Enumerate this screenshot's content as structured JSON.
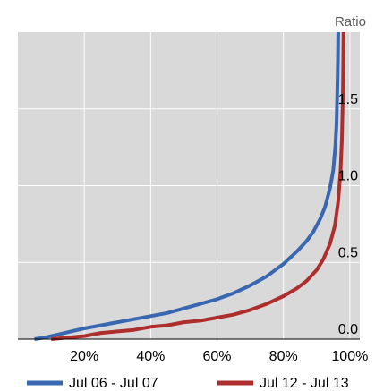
{
  "chart_data": {
    "type": "line",
    "title": "",
    "xlabel": "",
    "ylabel": "Ratio",
    "xlim": [
      0,
      103
    ],
    "ylim": [
      0,
      2.0
    ],
    "grid": true,
    "legend_position": "bottom",
    "x_ticks": [
      20,
      40,
      60,
      80,
      100
    ],
    "x_tick_labels": [
      "20%",
      "40%",
      "60%",
      "80%",
      "100%"
    ],
    "y_ticks": [
      0,
      0.5,
      1.0,
      1.5
    ],
    "y_tick_labels": [
      "0.0",
      "0.5",
      "1.0",
      "1.5"
    ],
    "background_color": "#d9d9d9",
    "grid_color": "#ffffff",
    "series": [
      {
        "name": "Jul 06 - Jul 07",
        "color": "#3a67b1",
        "points": [
          [
            5,
            0
          ],
          [
            8,
            0.01
          ],
          [
            12,
            0.03
          ],
          [
            16,
            0.05
          ],
          [
            20,
            0.07
          ],
          [
            25,
            0.09
          ],
          [
            30,
            0.11
          ],
          [
            35,
            0.13
          ],
          [
            40,
            0.15
          ],
          [
            45,
            0.17
          ],
          [
            50,
            0.2
          ],
          [
            55,
            0.23
          ],
          [
            60,
            0.26
          ],
          [
            65,
            0.3
          ],
          [
            70,
            0.35
          ],
          [
            75,
            0.41
          ],
          [
            80,
            0.49
          ],
          [
            84,
            0.57
          ],
          [
            87,
            0.64
          ],
          [
            89,
            0.7
          ],
          [
            91,
            0.78
          ],
          [
            92.5,
            0.86
          ],
          [
            94,
            0.98
          ],
          [
            95,
            1.1
          ],
          [
            95.6,
            1.25
          ],
          [
            96,
            1.4
          ],
          [
            96.2,
            1.6
          ],
          [
            96.4,
            1.8
          ],
          [
            96.5,
            2.0
          ]
        ]
      },
      {
        "name": "Jul 12 - Jul 13",
        "color": "#ae2d2d",
        "points": [
          [
            10,
            0
          ],
          [
            15,
            0.01
          ],
          [
            20,
            0.02
          ],
          [
            25,
            0.04
          ],
          [
            30,
            0.05
          ],
          [
            35,
            0.06
          ],
          [
            40,
            0.08
          ],
          [
            45,
            0.09
          ],
          [
            50,
            0.11
          ],
          [
            55,
            0.12
          ],
          [
            60,
            0.14
          ],
          [
            65,
            0.16
          ],
          [
            70,
            0.19
          ],
          [
            75,
            0.23
          ],
          [
            80,
            0.28
          ],
          [
            84,
            0.33
          ],
          [
            87,
            0.38
          ],
          [
            90,
            0.45
          ],
          [
            92,
            0.52
          ],
          [
            94,
            0.62
          ],
          [
            95.5,
            0.74
          ],
          [
            96.5,
            0.9
          ],
          [
            97.2,
            1.1
          ],
          [
            97.6,
            1.3
          ],
          [
            97.9,
            1.6
          ],
          [
            98,
            1.8
          ],
          [
            98.1,
            2.0
          ]
        ]
      }
    ]
  }
}
